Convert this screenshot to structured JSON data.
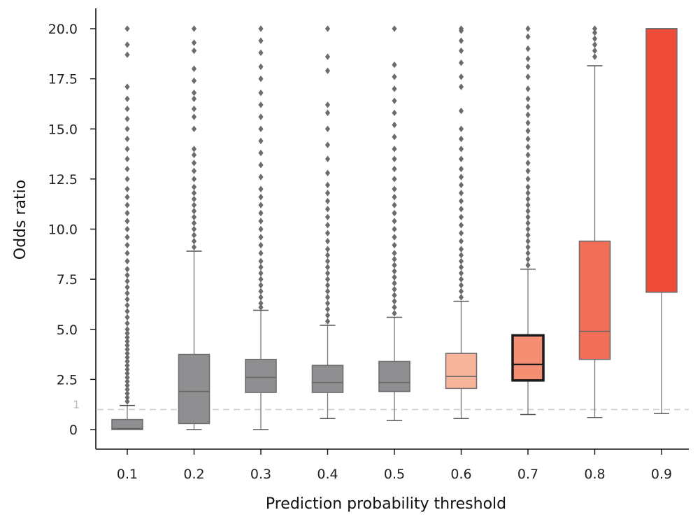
{
  "chart_data": {
    "type": "box",
    "title": "",
    "xlabel": "Prediction probability threshold",
    "ylabel": "Odds ratio",
    "ylim": [
      -1.0,
      20.6
    ],
    "yticks": [
      {
        "value": 0,
        "label": "0"
      },
      {
        "value": 2.5,
        "label": "2.5"
      },
      {
        "value": 5.0,
        "label": "5.0"
      },
      {
        "value": 7.5,
        "label": "7.5"
      },
      {
        "value": 10.0,
        "label": "10.0"
      },
      {
        "value": 12.5,
        "label": "12.5"
      },
      {
        "value": 15.0,
        "label": "15.0"
      },
      {
        "value": 17.5,
        "label": "17.5"
      },
      {
        "value": 20.0,
        "label": "20.0"
      }
    ],
    "reference_line": {
      "value": 1,
      "label": "1",
      "style": "dashed",
      "color": "#d0d0d0"
    },
    "grid": false,
    "boxes": [
      {
        "category": "0.1",
        "whisker_low": 0.0,
        "q1": 0.0,
        "median": 0.05,
        "q3": 0.5,
        "whisker_high": 1.2,
        "color": "#8f8f91",
        "highlighted": false,
        "outliers": [
          1.4,
          1.6,
          1.8,
          2.0,
          2.2,
          2.4,
          2.6,
          2.8,
          3.0,
          3.2,
          3.4,
          3.6,
          3.8,
          4.0,
          4.2,
          4.4,
          4.6,
          4.8,
          5.0,
          5.3,
          5.6,
          5.9,
          6.2,
          6.5,
          6.8,
          7.1,
          7.4,
          7.7,
          8.0,
          8.4,
          8.8,
          9.2,
          9.6,
          10.0,
          10.4,
          10.8,
          11.2,
          11.6,
          12.0,
          12.5,
          13.0,
          13.5,
          14.0,
          14.5,
          15.0,
          15.5,
          16.0,
          16.5,
          17.1,
          18.7,
          19.2,
          20.0
        ]
      },
      {
        "category": "0.2",
        "whisker_low": 0.0,
        "q1": 0.3,
        "median": 1.9,
        "q3": 3.75,
        "whisker_high": 8.9,
        "color": "#8f8f91",
        "highlighted": false,
        "outliers": [
          9.1,
          9.4,
          9.7,
          10.0,
          10.3,
          10.6,
          10.9,
          11.2,
          11.5,
          11.8,
          12.1,
          12.5,
          12.9,
          13.3,
          13.7,
          14.0,
          15.0,
          15.6,
          16.0,
          16.5,
          16.8,
          17.4,
          18.0,
          18.9,
          19.3,
          20.0
        ]
      },
      {
        "category": "0.3",
        "whisker_low": 0.0,
        "q1": 1.85,
        "median": 2.6,
        "q3": 3.5,
        "whisker_high": 5.95,
        "color": "#8f8f91",
        "highlighted": false,
        "outliers": [
          6.1,
          6.3,
          6.6,
          6.9,
          7.2,
          7.5,
          7.8,
          8.1,
          8.4,
          8.8,
          9.2,
          9.6,
          10.0,
          10.4,
          10.8,
          11.2,
          11.6,
          12.0,
          12.6,
          13.2,
          13.8,
          14.4,
          15.0,
          15.6,
          16.2,
          16.8,
          17.5,
          18.1,
          18.8,
          19.4,
          20.0
        ]
      },
      {
        "category": "0.4",
        "whisker_low": 0.55,
        "q1": 1.85,
        "median": 2.35,
        "q3": 3.2,
        "whisker_high": 5.2,
        "color": "#8f8f91",
        "highlighted": false,
        "outliers": [
          5.4,
          5.7,
          6.0,
          6.3,
          6.6,
          6.9,
          7.2,
          7.5,
          7.8,
          8.1,
          8.4,
          8.7,
          9.0,
          9.4,
          9.8,
          10.2,
          10.6,
          11.0,
          11.4,
          11.8,
          12.2,
          12.8,
          13.5,
          14.2,
          15.0,
          15.8,
          16.2,
          17.9,
          18.6,
          20.0
        ]
      },
      {
        "category": "0.5",
        "whisker_low": 0.45,
        "q1": 1.9,
        "median": 2.35,
        "q3": 3.4,
        "whisker_high": 5.6,
        "color": "#8f8f91",
        "highlighted": false,
        "outliers": [
          5.8,
          6.1,
          6.4,
          6.7,
          7.0,
          7.3,
          7.6,
          7.9,
          8.2,
          8.5,
          8.8,
          9.2,
          9.6,
          10.0,
          10.4,
          10.8,
          11.2,
          11.6,
          12.0,
          12.5,
          13.0,
          13.5,
          14.0,
          14.6,
          15.2,
          15.8,
          16.4,
          17.0,
          17.6,
          18.2,
          20.0
        ]
      },
      {
        "category": "0.6",
        "whisker_low": 0.55,
        "q1": 2.05,
        "median": 2.65,
        "q3": 3.8,
        "whisker_high": 6.4,
        "color": "#f9b49c",
        "highlighted": false,
        "outliers": [
          6.6,
          6.9,
          7.2,
          7.5,
          7.8,
          8.1,
          8.4,
          8.7,
          9.0,
          9.4,
          9.8,
          10.2,
          10.6,
          11.0,
          11.4,
          11.8,
          12.2,
          12.6,
          13.0,
          13.5,
          14.0,
          14.5,
          15.0,
          15.9,
          17.1,
          17.6,
          18.3,
          18.9,
          19.4,
          19.9,
          20.0
        ]
      },
      {
        "category": "0.7",
        "whisker_low": 0.75,
        "q1": 2.45,
        "median": 3.25,
        "q3": 4.7,
        "whisker_high": 8.0,
        "color": "#f58e73",
        "highlighted": true,
        "outliers": [
          8.2,
          8.5,
          8.8,
          9.1,
          9.4,
          9.7,
          10.0,
          10.3,
          10.6,
          10.9,
          11.2,
          11.5,
          11.8,
          12.1,
          12.5,
          12.9,
          13.3,
          13.7,
          14.1,
          14.5,
          14.9,
          15.3,
          15.7,
          16.1,
          16.5,
          17.0,
          17.6,
          18.1,
          18.5,
          19.0,
          19.6,
          20.0
        ]
      },
      {
        "category": "0.8",
        "whisker_low": 0.6,
        "q1": 3.5,
        "median": 4.9,
        "q3": 9.4,
        "whisker_high": 18.15,
        "color": "#f36e57",
        "highlighted": false,
        "outliers": [
          18.6,
          18.9,
          19.2,
          19.5,
          19.8,
          20.0
        ]
      },
      {
        "category": "0.9",
        "whisker_low": 0.8,
        "q1": 6.85,
        "median": 20.0,
        "q3": 20.0,
        "whisker_high": 20.0,
        "color": "#ef4b38",
        "highlighted": false,
        "outliers": []
      }
    ]
  }
}
